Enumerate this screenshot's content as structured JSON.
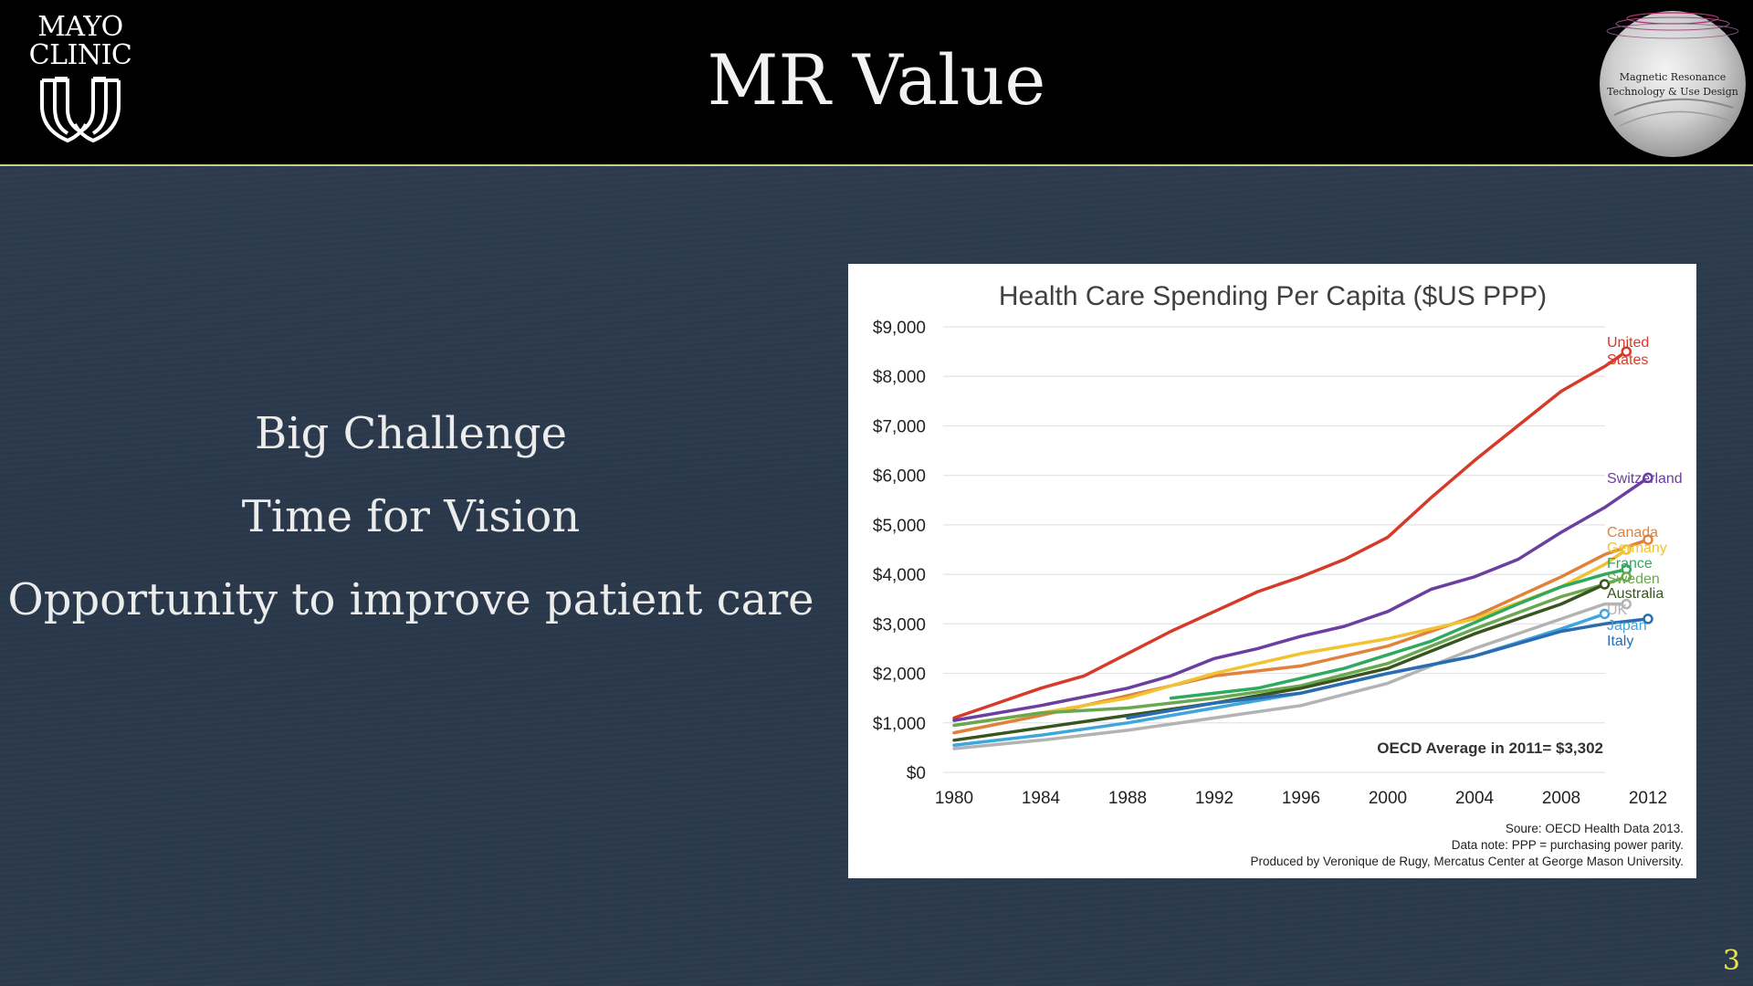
{
  "slide": {
    "title": "MR Value",
    "logo_lines": [
      "MAYO",
      "CLINIC"
    ],
    "seal_text": [
      "Magnetic Resonance",
      "Technology & Use Design"
    ],
    "bullets": [
      "Big Challenge",
      "Time for Vision",
      "Opportunity to improve patient care"
    ],
    "page_number": "3"
  },
  "colors": {
    "header_bg": "#000000",
    "slide_bg": "#2c3a4d",
    "accent_rule": "#c9cf86",
    "page_number": "#e8e25a"
  },
  "chart_data": {
    "type": "line",
    "title": "Health Care Spending Per Capita ($US PPP)",
    "xlabel": "",
    "ylabel": "",
    "xlim": [
      1980,
      2013
    ],
    "ylim": [
      0,
      9000
    ],
    "x_ticks": [
      1980,
      1984,
      1988,
      1992,
      1996,
      2000,
      2004,
      2008,
      2012
    ],
    "y_ticks": [
      0,
      1000,
      2000,
      3000,
      4000,
      5000,
      6000,
      7000,
      8000,
      9000
    ],
    "y_tick_labels": [
      "$0",
      "$1,000",
      "$2,000",
      "$3,000",
      "$4,000",
      "$5,000",
      "$6,000",
      "$7,000",
      "$8,000",
      "$9,000"
    ],
    "annotation": "OECD Average in 2011= $3,302",
    "footnotes": [
      "Soure: OECD Health Data 2013.",
      "Data note: PPP = purchasing power parity.",
      "Produced by Veronique de Rugy, Mercatus Center at George Mason University."
    ],
    "series": [
      {
        "name": "United States",
        "label_lines": [
          "United",
          "States"
        ],
        "color": "#d63b2a",
        "x": [
          1980,
          1982,
          1984,
          1986,
          1988,
          1990,
          1992,
          1994,
          1996,
          1998,
          2000,
          2002,
          2004,
          2006,
          2008,
          2010,
          2011
        ],
        "values": [
          1100,
          1400,
          1700,
          1950,
          2400,
          2850,
          3250,
          3650,
          3950,
          4300,
          4750,
          5550,
          6300,
          7000,
          7700,
          8200,
          8500
        ]
      },
      {
        "name": "Switzerland",
        "color": "#6a3fa0",
        "x": [
          1980,
          1984,
          1988,
          1990,
          1992,
          1994,
          1996,
          1998,
          2000,
          2002,
          2004,
          2006,
          2008,
          2010,
          2012
        ],
        "values": [
          1050,
          1350,
          1700,
          1950,
          2300,
          2500,
          2750,
          2950,
          3250,
          3700,
          3950,
          4300,
          4850,
          5350,
          5950
        ]
      },
      {
        "name": "Canada",
        "color": "#e0823c",
        "x": [
          1980,
          1984,
          1988,
          1992,
          1996,
          2000,
          2004,
          2008,
          2010,
          2012
        ],
        "values": [
          800,
          1150,
          1550,
          1950,
          2150,
          2550,
          3150,
          3950,
          4400,
          4700
        ]
      },
      {
        "name": "Germany",
        "color": "#f1c232",
        "x": [
          1980,
          1984,
          1988,
          1992,
          1996,
          2000,
          2004,
          2008,
          2010,
          2011
        ],
        "values": [
          950,
          1200,
          1500,
          2000,
          2400,
          2700,
          3100,
          3750,
          4200,
          4500
        ]
      },
      {
        "name": "France",
        "color": "#2eaa5f",
        "x": [
          1990,
          1994,
          1998,
          2002,
          2006,
          2008,
          2010,
          2011
        ],
        "values": [
          1500,
          1700,
          2100,
          2650,
          3400,
          3750,
          4000,
          4100
        ]
      },
      {
        "name": "Sweden",
        "color": "#6aa84f",
        "x": [
          1980,
          1984,
          1988,
          1992,
          1996,
          2000,
          2004,
          2008,
          2010,
          2011
        ],
        "values": [
          950,
          1200,
          1300,
          1500,
          1750,
          2200,
          2900,
          3550,
          3800,
          3950
        ]
      },
      {
        "name": "Australia",
        "color": "#38551f",
        "x": [
          1980,
          1984,
          1988,
          1992,
          1996,
          2000,
          2004,
          2008,
          2010
        ],
        "values": [
          650,
          900,
          1150,
          1400,
          1700,
          2100,
          2800,
          3400,
          3800
        ]
      },
      {
        "name": "UK",
        "color": "#b3b3b3",
        "x": [
          1980,
          1984,
          1988,
          1992,
          1996,
          2000,
          2004,
          2008,
          2010,
          2011
        ],
        "values": [
          480,
          650,
          850,
          1100,
          1350,
          1800,
          2500,
          3100,
          3400,
          3400
        ]
      },
      {
        "name": "Japan",
        "color": "#3ea6dc",
        "x": [
          1980,
          1984,
          1988,
          1992,
          1996,
          2000,
          2004,
          2008,
          2010
        ],
        "values": [
          550,
          750,
          1000,
          1300,
          1600,
          2000,
          2350,
          2900,
          3200
        ]
      },
      {
        "name": "Italy",
        "color": "#2b6cb0",
        "x": [
          1988,
          1992,
          1996,
          2000,
          2004,
          2008,
          2010,
          2012
        ],
        "values": [
          1100,
          1400,
          1600,
          2000,
          2350,
          2850,
          3000,
          3100
        ]
      }
    ]
  }
}
